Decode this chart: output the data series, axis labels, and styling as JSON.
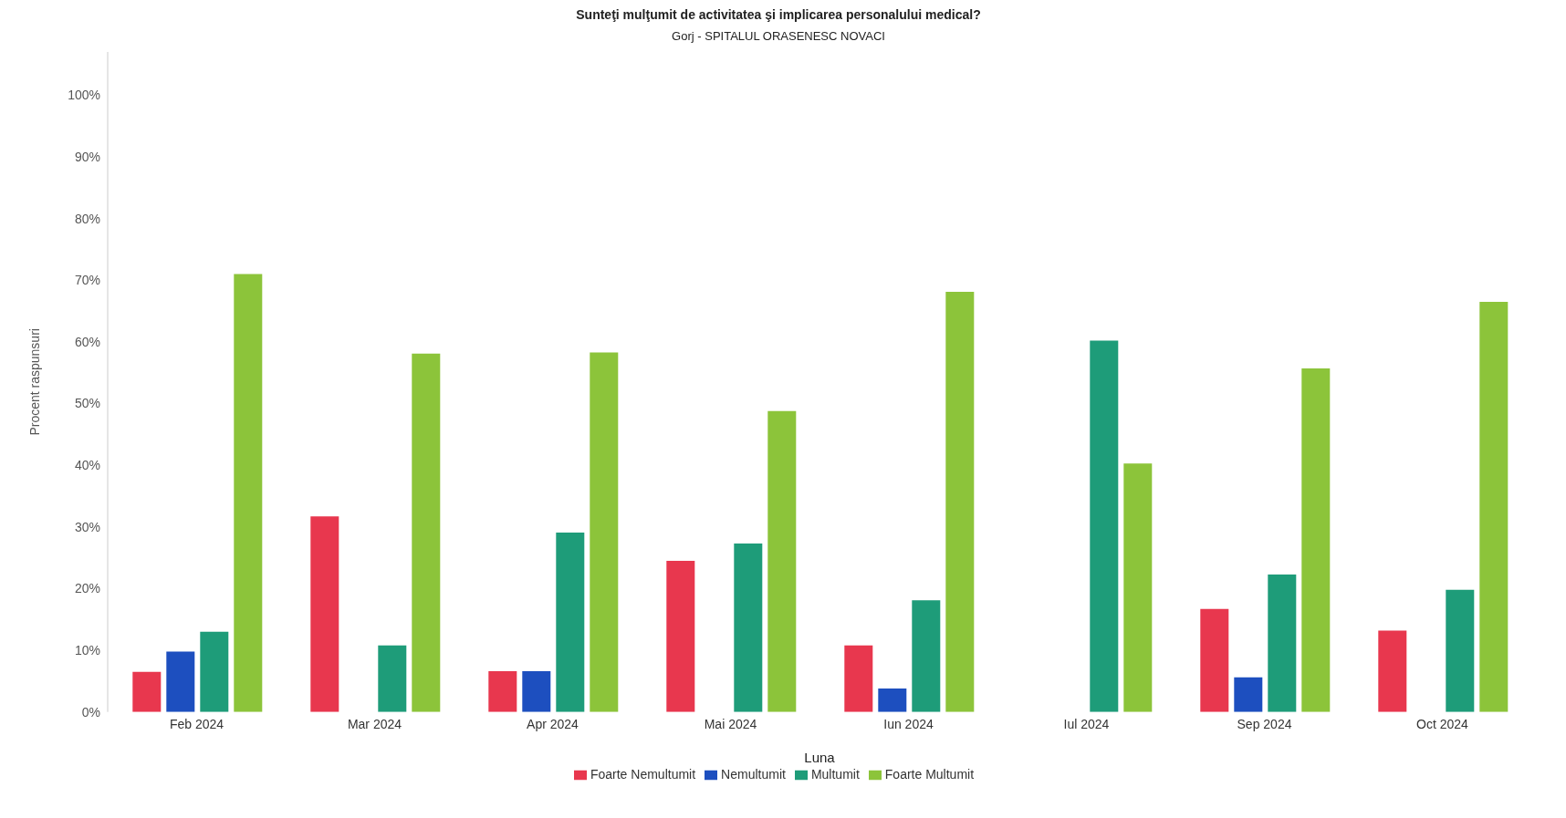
{
  "chart_data": {
    "type": "bar",
    "title": "Sunteţi mulţumit de activitatea şi implicarea personalului medical?",
    "subtitle": "Gorj - SPITALUL ORASENESC NOVACI",
    "xlabel": "Luna",
    "ylabel": "Procent raspunsuri",
    "categories": [
      "Feb 2024",
      "Mar 2024",
      "Apr 2024",
      "Mai 2024",
      "Iun 2024",
      "Iul 2024",
      "Sep 2024",
      "Oct 2024"
    ],
    "series": [
      {
        "name": "Foarte Nemultumit",
        "color": "#e8374e",
        "values": [
          6.5,
          31.7,
          6.6,
          24.5,
          10.8,
          0,
          16.7,
          13.2
        ]
      },
      {
        "name": "Nemultumit",
        "color": "#1d4fbf",
        "values": [
          9.8,
          0,
          6.6,
          0,
          3.8,
          0,
          5.6,
          0
        ]
      },
      {
        "name": "Multumit",
        "color": "#1e9c79",
        "values": [
          13,
          10.8,
          29.1,
          27.3,
          18.1,
          60.2,
          22.3,
          19.8
        ]
      },
      {
        "name": "Foarte Multumit",
        "color": "#8cc43a",
        "values": [
          71,
          58.1,
          58.3,
          48.8,
          68.1,
          40.3,
          55.7,
          66.5
        ]
      }
    ],
    "ylim": [
      0,
      107
    ],
    "yticks": [
      {
        "value": 0,
        "label": "0%"
      },
      {
        "value": 10,
        "label": "10%"
      },
      {
        "value": 20,
        "label": "20%"
      },
      {
        "value": 30,
        "label": "30%"
      },
      {
        "value": 40,
        "label": "40%"
      },
      {
        "value": 50,
        "label": "50%"
      },
      {
        "value": 60,
        "label": "60%"
      },
      {
        "value": 70,
        "label": "70%"
      },
      {
        "value": 80,
        "label": "80%"
      },
      {
        "value": 90,
        "label": "90%"
      },
      {
        "value": 100,
        "label": "100%"
      }
    ],
    "legend": "bottom"
  }
}
